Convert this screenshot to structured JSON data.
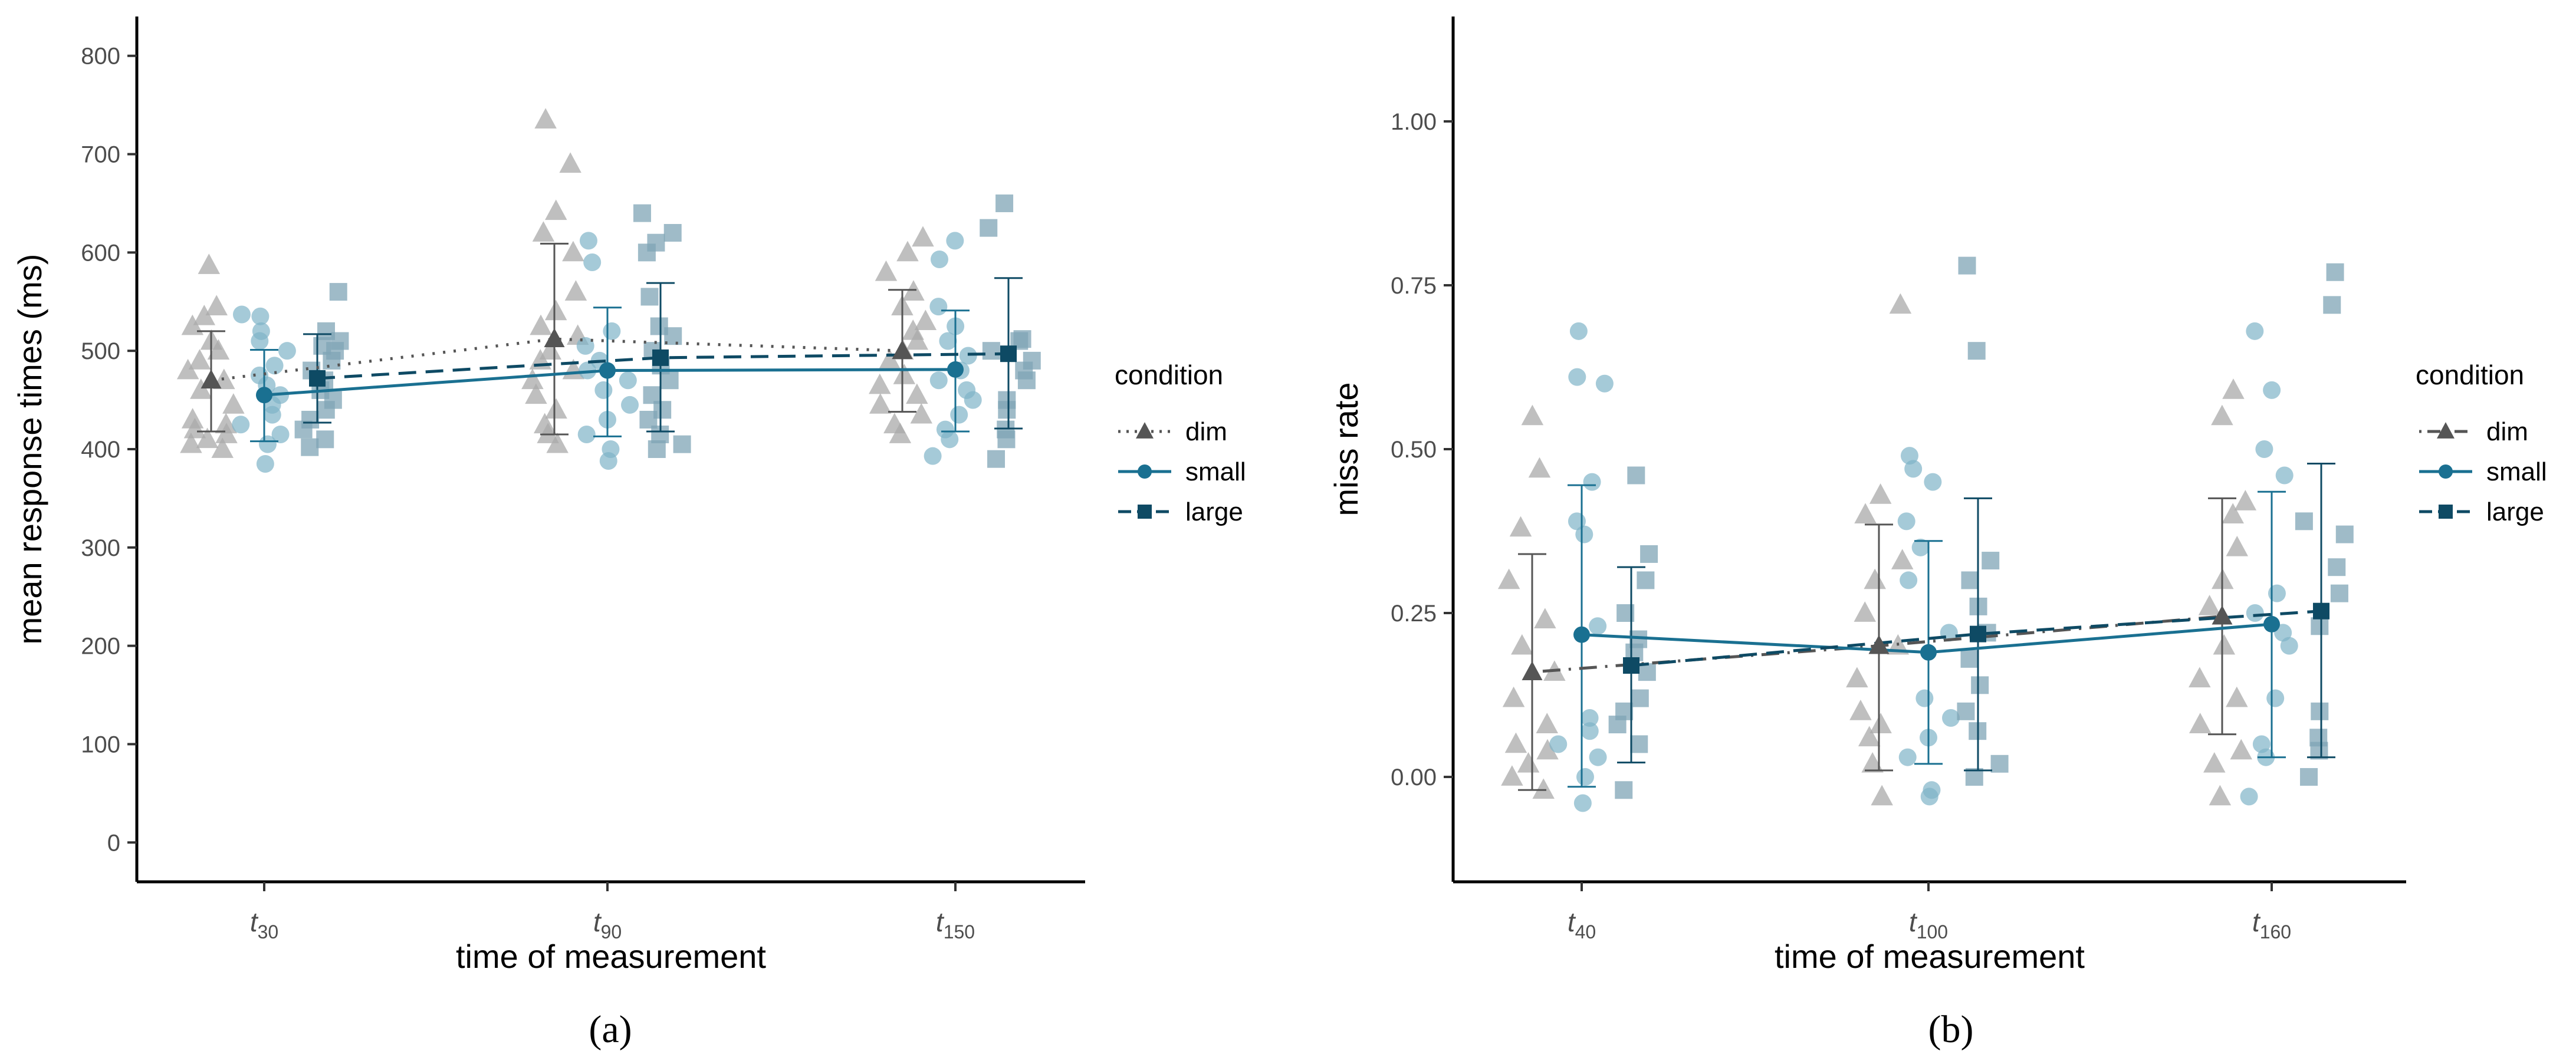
{
  "colors": {
    "dim": "#555555",
    "dim_points": "#aaaaaa",
    "small": "#1a7091",
    "small_points": "#7fb3c8",
    "large": "#0e4a64",
    "large_points": "#7fa4b5",
    "axis": "#000000",
    "tick_text": "#4d4d4d",
    "background": "#ffffff"
  },
  "chart_data": [
    {
      "panel": "a",
      "panel_label": "(a)",
      "type": "scatter",
      "xlabel": "time of measurement",
      "ylabel": "mean response times (ms)",
      "ylim": [
        -40,
        840
      ],
      "yticks": [
        0,
        100,
        200,
        300,
        400,
        500,
        600,
        700,
        800
      ],
      "categories": [
        {
          "base": "t",
          "sub": "30"
        },
        {
          "base": "t",
          "sub": "90"
        },
        {
          "base": "t",
          "sub": "150"
        }
      ],
      "grid": false,
      "legend": {
        "title": "condition",
        "position": "right",
        "entries": [
          "dim",
          "small",
          "large"
        ]
      },
      "series": [
        {
          "name": "dim",
          "marker": "triangle",
          "line": "dotted",
          "means": [
            470,
            512,
            500
          ],
          "error": [
            [
              418,
              520
            ],
            [
              415,
              609
            ],
            [
              438,
              562
            ]
          ],
          "points": [
            [
              400,
              405,
              410,
              415,
              420,
              425,
              430,
              445,
              460,
              470,
              480,
              490,
              500,
              510,
              525,
              535,
              545,
              587
            ],
            [
              405,
              415,
              425,
              440,
              455,
              470,
              480,
              490,
              500,
              515,
              525,
              540,
              560,
              600,
              620,
              642,
              690,
              735
            ],
            [
              415,
              425,
              435,
              445,
              455,
              465,
              475,
              490,
              500,
              510,
              520,
              530,
              545,
              560,
              580,
              600,
              615
            ]
          ]
        },
        {
          "name": "small",
          "marker": "circle",
          "line": "solid",
          "means": [
            455,
            480,
            481
          ],
          "error": [
            [
              408,
              501
            ],
            [
              413,
              544
            ],
            [
              418,
              541
            ]
          ],
          "points": [
            [
              385,
              405,
              415,
              425,
              435,
              445,
              455,
              465,
              475,
              485,
              500,
              510,
              520,
              535,
              537
            ],
            [
              388,
              400,
              415,
              430,
              445,
              460,
              470,
              480,
              490,
              505,
              520,
              590,
              612
            ],
            [
              393,
              410,
              420,
              435,
              450,
              460,
              470,
              480,
              495,
              510,
              525,
              545,
              593,
              612
            ]
          ]
        },
        {
          "name": "large",
          "marker": "square",
          "line": "dashed",
          "means": [
            472,
            493,
            497
          ],
          "error": [
            [
              427,
              517
            ],
            [
              418,
              569
            ],
            [
              421,
              574
            ]
          ],
          "points": [
            [
              402,
              410,
              420,
              430,
              440,
              450,
              460,
              470,
              480,
              490,
              500,
              505,
              510,
              520,
              560
            ],
            [
              400,
              405,
              415,
              430,
              440,
              455,
              470,
              485,
              500,
              515,
              525,
              555,
              600,
              610,
              620,
              640
            ],
            [
              390,
              410,
              420,
              440,
              450,
              470,
              480,
              490,
              500,
              510,
              512,
              625,
              650
            ]
          ]
        }
      ]
    },
    {
      "panel": "b",
      "panel_label": "(b)",
      "type": "scatter",
      "xlabel": "time of measurement",
      "ylabel": "miss rate",
      "ylim": [
        -0.16,
        1.16
      ],
      "yticks": [
        "0.00",
        "0.25",
        "0.50",
        "0.75",
        "1.00"
      ],
      "categories": [
        {
          "base": "t",
          "sub": "40"
        },
        {
          "base": "t",
          "sub": "100"
        },
        {
          "base": "t",
          "sub": "160"
        }
      ],
      "grid": false,
      "legend": {
        "title": "condition",
        "position": "right",
        "entries": [
          "dim",
          "small",
          "large"
        ]
      },
      "series": [
        {
          "name": "dim",
          "marker": "triangle",
          "line": "dotdash",
          "means": [
            0.16,
            0.2,
            0.245
          ],
          "error": [
            [
              -0.02,
              0.34
            ],
            [
              0.01,
              0.385
            ],
            [
              0.065,
              0.425
            ]
          ],
          "points": [
            [
              -0.02,
              0.0,
              0.02,
              0.04,
              0.05,
              0.08,
              0.12,
              0.16,
              0.2,
              0.24,
              0.3,
              0.38,
              0.47,
              0.55
            ],
            [
              -0.03,
              0.02,
              0.06,
              0.08,
              0.1,
              0.15,
              0.2,
              0.25,
              0.3,
              0.33,
              0.4,
              0.43,
              0.72
            ],
            [
              -0.03,
              0.02,
              0.04,
              0.08,
              0.12,
              0.15,
              0.2,
              0.26,
              0.3,
              0.35,
              0.4,
              0.42,
              0.55,
              0.59
            ]
          ]
        },
        {
          "name": "small",
          "marker": "circle",
          "line": "solid",
          "means": [
            0.217,
            0.19,
            0.233
          ],
          "error": [
            [
              -0.015,
              0.445
            ],
            [
              0.02,
              0.36
            ],
            [
              0.03,
              0.435
            ]
          ],
          "points": [
            [
              -0.04,
              0.0,
              0.03,
              0.05,
              0.07,
              0.09,
              0.23,
              0.37,
              0.39,
              0.45,
              0.6,
              0.61,
              0.68
            ],
            [
              -0.03,
              -0.02,
              0.03,
              0.06,
              0.09,
              0.12,
              0.22,
              0.3,
              0.35,
              0.39,
              0.45,
              0.47,
              0.49
            ],
            [
              -0.03,
              0.03,
              0.05,
              0.12,
              0.2,
              0.22,
              0.25,
              0.28,
              0.46,
              0.5,
              0.59,
              0.68
            ]
          ]
        },
        {
          "name": "large",
          "marker": "square",
          "line": "dashed",
          "means": [
            0.17,
            0.218,
            0.253
          ],
          "error": [
            [
              0.022,
              0.32
            ],
            [
              0.01,
              0.425
            ],
            [
              0.03,
              0.478
            ]
          ],
          "points": [
            [
              -0.02,
              0.05,
              0.08,
              0.1,
              0.12,
              0.16,
              0.19,
              0.21,
              0.25,
              0.3,
              0.34,
              0.46
            ],
            [
              0.0,
              0.02,
              0.07,
              0.1,
              0.14,
              0.18,
              0.22,
              0.26,
              0.3,
              0.33,
              0.65,
              0.78
            ],
            [
              0.0,
              0.04,
              0.06,
              0.1,
              0.23,
              0.28,
              0.32,
              0.37,
              0.39,
              0.72,
              0.77
            ]
          ]
        }
      ]
    }
  ]
}
